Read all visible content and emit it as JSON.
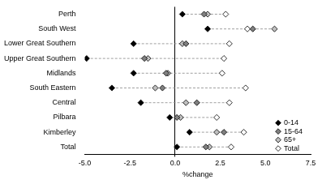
{
  "chart_data": {
    "type": "dot",
    "orientation": "horizontal",
    "x_label": "%change",
    "categories": [
      "Perth",
      "South West",
      "Lower Great Southern",
      "Upper Great Southern",
      "Midlands",
      "South Eastern",
      "Central",
      "Pilbara",
      "Kimberley",
      "Total"
    ],
    "series": [
      {
        "name": "0-14",
        "color": "#000000",
        "marker": "diamond",
        "values": [
          0.4,
          1.8,
          -2.3,
          -4.9,
          -2.3,
          -3.5,
          -1.9,
          -0.3,
          0.8,
          0.1
        ]
      },
      {
        "name": "15-64",
        "color": "#808080",
        "marker": "diamond",
        "values": [
          1.6,
          4.3,
          0.6,
          -1.7,
          -0.5,
          -0.7,
          1.2,
          0.1,
          2.7,
          1.7
        ]
      },
      {
        "name": "65+",
        "color": "#c0c0c0",
        "marker": "diamond",
        "values": [
          1.8,
          5.5,
          0.4,
          -1.5,
          -0.4,
          -1.1,
          0.6,
          0.3,
          2.3,
          1.9
        ]
      },
      {
        "name": "Total",
        "color": "#ffffff",
        "marker": "diamond",
        "values": [
          2.8,
          4.0,
          3.0,
          2.7,
          2.6,
          3.9,
          3.0,
          2.3,
          3.8,
          3.1
        ]
      }
    ],
    "xlim": [
      -5,
      7.5
    ],
    "xticks": [
      {
        "value": -5,
        "label": "-5.0"
      },
      {
        "value": -2.5,
        "label": "-2.5"
      },
      {
        "value": 0,
        "label": "0.0"
      },
      {
        "value": 2.5,
        "label": "2.5"
      },
      {
        "value": 5,
        "label": "5.0"
      },
      {
        "value": 7.5,
        "label": "7.5"
      }
    ],
    "grid": false,
    "legend": "lower right"
  }
}
